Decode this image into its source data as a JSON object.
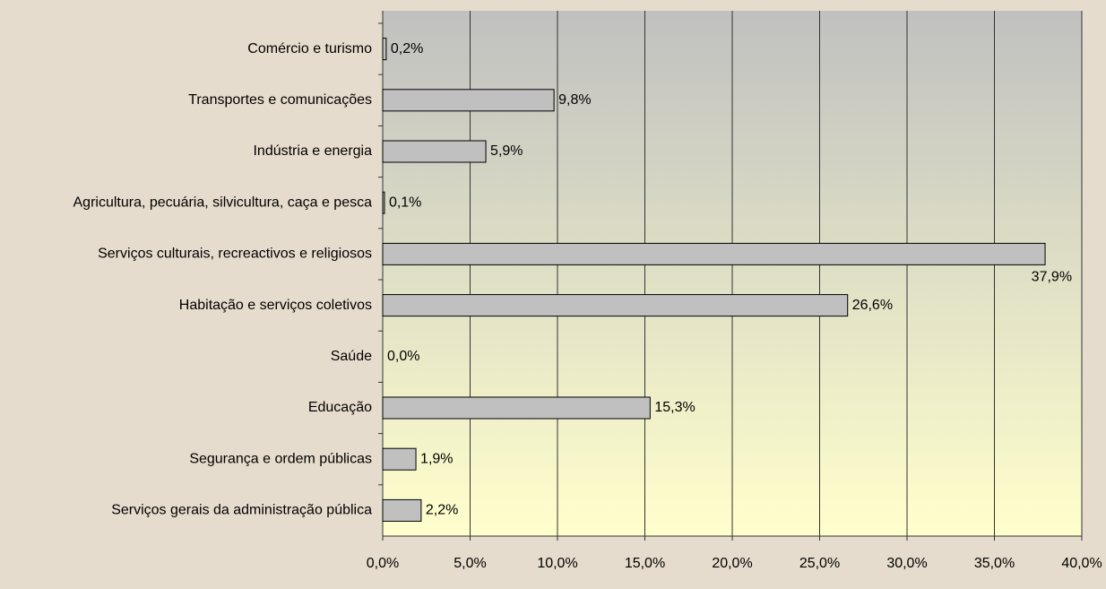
{
  "chart_data": {
    "type": "hbar",
    "categories": [
      "Comércio e turismo",
      "Transportes e comunicações",
      "Indústria e energia",
      "Agricultura, pecuária, silvicultura, caça e pesca",
      "Serviços culturais, recreactivos e religiosos",
      "Habitação e serviços coletivos",
      "Saúde",
      "Educação",
      "Segurança e ordem públicas",
      "Serviços gerais da administração pública"
    ],
    "values": [
      0.2,
      9.8,
      5.9,
      0.1,
      37.9,
      26.6,
      0.0,
      15.3,
      1.9,
      2.2
    ],
    "value_labels": [
      "0,2%",
      "9,8%",
      "5,9%",
      "0,1%",
      "37,9%",
      "26,6%",
      "0,0%",
      "15,3%",
      "1,9%",
      "2,2%"
    ],
    "color": "#c0c0c0",
    "xlim": [
      0,
      40
    ],
    "xticks": [
      {
        "value": 0,
        "label": "0,0%"
      },
      {
        "value": 5,
        "label": "5,0%"
      },
      {
        "value": 10,
        "label": "10,0%"
      },
      {
        "value": 15,
        "label": "15,0%"
      },
      {
        "value": 20,
        "label": "20,0%"
      },
      {
        "value": 25,
        "label": "25,0%"
      },
      {
        "value": 30,
        "label": "30,0%"
      },
      {
        "value": 35,
        "label": "35,0%"
      },
      {
        "value": 40,
        "label": "40,0%"
      }
    ],
    "grid": true
  }
}
